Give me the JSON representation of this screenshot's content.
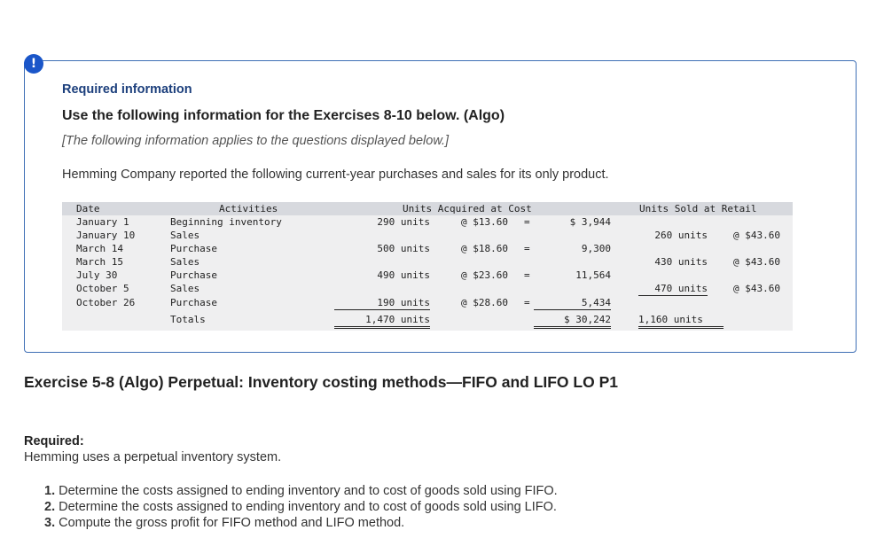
{
  "alert_icon_glyph": "!",
  "info": {
    "required_information": "Required information",
    "use_following": "Use the following information for the Exercises 8-10 below. (Algo)",
    "applies_note": "[The following information applies to the questions displayed below.]",
    "intro": "Hemming Company reported the following current-year purchases and sales for its only product."
  },
  "table": {
    "headers": {
      "date": "Date",
      "activities": "Activities",
      "acquired": "Units Acquired at Cost",
      "sold": "Units Sold at Retail"
    },
    "rows": [
      {
        "date": "January 1",
        "activity": "Beginning inventory",
        "acq_units": "290 units",
        "acq_price": "@ $13.60",
        "eq": "=",
        "cost": "$ 3,944",
        "sold_units": "",
        "sold_price": ""
      },
      {
        "date": "January 10",
        "activity": "Sales",
        "acq_units": "",
        "acq_price": "",
        "eq": "",
        "cost": "",
        "sold_units": "260 units",
        "sold_price": "@ $43.60"
      },
      {
        "date": "March 14",
        "activity": "Purchase",
        "acq_units": "500 units",
        "acq_price": "@ $18.60",
        "eq": "=",
        "cost": "9,300",
        "sold_units": "",
        "sold_price": ""
      },
      {
        "date": "March 15",
        "activity": "Sales",
        "acq_units": "",
        "acq_price": "",
        "eq": "",
        "cost": "",
        "sold_units": "430 units",
        "sold_price": "@ $43.60"
      },
      {
        "date": "July 30",
        "activity": "Purchase",
        "acq_units": "490 units",
        "acq_price": "@ $23.60",
        "eq": "=",
        "cost": "11,564",
        "sold_units": "",
        "sold_price": ""
      },
      {
        "date": "October 5",
        "activity": "Sales",
        "acq_units": "",
        "acq_price": "",
        "eq": "",
        "cost": "",
        "sold_units": "470 units",
        "sold_price": "@ $43.60"
      },
      {
        "date": "October 26",
        "activity": "Purchase",
        "acq_units": "190 units",
        "acq_price": "@ $28.60",
        "eq": "=",
        "cost": "5,434",
        "sold_units": "",
        "sold_price": ""
      }
    ],
    "totals": {
      "label": "Totals",
      "acq_units": "1,470 units",
      "cost": "$ 30,242",
      "sold_units": "1,160 units"
    }
  },
  "exercise_title": "Exercise 5-8 (Algo) Perpetual: Inventory costing methods—FIFO and LIFO LO P1",
  "required": {
    "label": "Required:",
    "text": "Hemming uses a perpetual inventory system.",
    "items": [
      {
        "num": "1.",
        "text": "Determine the costs assigned to ending inventory and to cost of goods sold using FIFO."
      },
      {
        "num": "2.",
        "text": "Determine the costs assigned to ending inventory and to cost of goods sold using LIFO."
      },
      {
        "num": "3.",
        "text": "Compute the gross profit for FIFO method and LIFO method."
      }
    ]
  }
}
